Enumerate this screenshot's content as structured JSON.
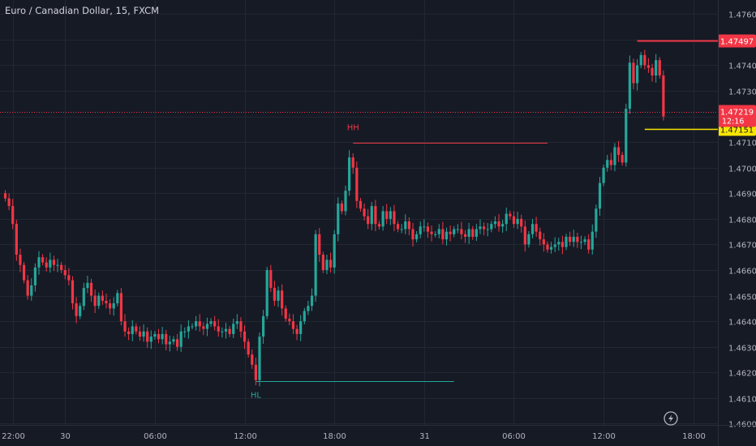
{
  "header": {
    "title": "Euro / Canadian Dollar, 15, FXCM"
  },
  "chart_data": {
    "type": "candlestick",
    "y_ticks": [
      "1.47600",
      "1.47500",
      "1.47400",
      "1.47300",
      "1.47200",
      "1.47100",
      "1.47000",
      "1.46900",
      "1.46800",
      "1.46700",
      "1.46600",
      "1.46500",
      "1.46400",
      "1.46300",
      "1.46200",
      "1.46100",
      "1.46000"
    ],
    "y_range": [
      1.45995,
      1.47655
    ],
    "x_ticks": [
      {
        "label": "22:00",
        "bar": 2
      },
      {
        "label": "30",
        "bar": 16
      },
      {
        "label": "06:00",
        "bar": 40
      },
      {
        "label": "12:00",
        "bar": 64
      },
      {
        "label": "18:00",
        "bar": 88
      },
      {
        "label": "31",
        "bar": 112
      },
      {
        "label": "06:00",
        "bar": 136
      },
      {
        "label": "12:00",
        "bar": 160
      },
      {
        "label": "18:00",
        "bar": 184
      }
    ],
    "closes": [
      1.4688,
      1.4685,
      1.4678,
      1.4666,
      1.4662,
      1.4656,
      1.465,
      1.4654,
      1.4661,
      1.4665,
      1.4663,
      1.4661,
      1.4664,
      1.4662,
      1.4662,
      1.466,
      1.4658,
      1.4656,
      1.4647,
      1.4642,
      1.4646,
      1.4653,
      1.4655,
      1.465,
      1.4646,
      1.465,
      1.4648,
      1.4647,
      1.4645,
      1.4647,
      1.4651,
      1.464,
      1.4636,
      1.4635,
      1.4638,
      1.4636,
      1.4634,
      1.4636,
      1.4632,
      1.4634,
      1.4635,
      1.4633,
      1.4635,
      1.4631,
      1.4632,
      1.4633,
      1.463,
      1.4636,
      1.4636,
      1.4638,
      1.4638,
      1.464,
      1.4638,
      1.4637,
      1.4639,
      1.464,
      1.4638,
      1.4636,
      1.4636,
      1.4637,
      1.4635,
      1.4639,
      1.464,
      1.4636,
      1.4632,
      1.4627,
      1.4623,
      1.4617,
      1.4634,
      1.4642,
      1.466,
      1.4653,
      1.4648,
      1.4652,
      1.4645,
      1.4641,
      1.464,
      1.4637,
      1.4635,
      1.464,
      1.4644,
      1.4646,
      1.465,
      1.4674,
      1.4666,
      1.466,
      1.4664,
      1.4661,
      1.4674,
      1.4686,
      1.4683,
      1.4691,
      1.4704,
      1.47,
      1.4687,
      1.4684,
      1.4681,
      1.4678,
      1.4685,
      1.4678,
      1.4677,
      1.4683,
      1.468,
      1.4683,
      1.4678,
      1.4676,
      1.4676,
      1.4679,
      1.4676,
      1.4672,
      1.4674,
      1.4677,
      1.4677,
      1.4675,
      1.4674,
      1.4674,
      1.4676,
      1.4672,
      1.4675,
      1.4674,
      1.4676,
      1.4676,
      1.4674,
      1.4673,
      1.4676,
      1.4673,
      1.4676,
      1.4677,
      1.4676,
      1.4676,
      1.4678,
      1.4679,
      1.4677,
      1.4678,
      1.4682,
      1.4681,
      1.4678,
      1.468,
      1.4677,
      1.467,
      1.4674,
      1.4678,
      1.4675,
      1.4672,
      1.467,
      1.4668,
      1.4669,
      1.467,
      1.4671,
      1.4669,
      1.4673,
      1.4671,
      1.4673,
      1.4671,
      1.4671,
      1.4672,
      1.4668,
      1.4675,
      1.4684,
      1.4694,
      1.47,
      1.4703,
      1.4701,
      1.4708,
      1.4705,
      1.4702,
      1.4723,
      1.4741,
      1.4733,
      1.474,
      1.4744,
      1.474,
      1.4739,
      1.4736,
      1.4742,
      1.4736,
      1.472
    ],
    "opens": [
      1.469,
      1.4688,
      1.4685,
      1.4678,
      1.4666,
      1.4662,
      1.4656,
      1.465,
      1.4654,
      1.4661,
      1.4665,
      1.4663,
      1.4661,
      1.4664,
      1.4662,
      1.4662,
      1.466,
      1.4658,
      1.4656,
      1.4647,
      1.4642,
      1.4646,
      1.4653,
      1.4655,
      1.465,
      1.4646,
      1.465,
      1.4648,
      1.4647,
      1.4645,
      1.4647,
      1.4651,
      1.464,
      1.4636,
      1.4635,
      1.4638,
      1.4636,
      1.4634,
      1.4636,
      1.4632,
      1.4634,
      1.4635,
      1.4633,
      1.4635,
      1.4631,
      1.4632,
      1.4633,
      1.463,
      1.4636,
      1.4636,
      1.4638,
      1.4638,
      1.464,
      1.4638,
      1.4637,
      1.4639,
      1.464,
      1.4638,
      1.4636,
      1.4636,
      1.4637,
      1.4635,
      1.4639,
      1.464,
      1.4636,
      1.4632,
      1.4627,
      1.4623,
      1.4617,
      1.4634,
      1.4642,
      1.466,
      1.4653,
      1.4648,
      1.4652,
      1.4645,
      1.4641,
      1.464,
      1.4637,
      1.4635,
      1.464,
      1.4644,
      1.4646,
      1.465,
      1.4674,
      1.4666,
      1.466,
      1.4664,
      1.4661,
      1.4674,
      1.4686,
      1.4683,
      1.4691,
      1.4704,
      1.47,
      1.4687,
      1.4684,
      1.4681,
      1.4678,
      1.4685,
      1.4678,
      1.4677,
      1.4683,
      1.468,
      1.4683,
      1.4678,
      1.4676,
      1.4676,
      1.4679,
      1.4676,
      1.4672,
      1.4674,
      1.4677,
      1.4677,
      1.4675,
      1.4674,
      1.4674,
      1.4676,
      1.4672,
      1.4675,
      1.4674,
      1.4676,
      1.4676,
      1.4674,
      1.4673,
      1.4676,
      1.4673,
      1.4676,
      1.4677,
      1.4676,
      1.4676,
      1.4678,
      1.4679,
      1.4677,
      1.4678,
      1.4682,
      1.4681,
      1.4678,
      1.468,
      1.4677,
      1.467,
      1.4674,
      1.4678,
      1.4675,
      1.4672,
      1.467,
      1.4668,
      1.4669,
      1.467,
      1.4671,
      1.4669,
      1.4673,
      1.4671,
      1.4673,
      1.4671,
      1.4671,
      1.4672,
      1.4668,
      1.4675,
      1.4684,
      1.4694,
      1.47,
      1.4703,
      1.4701,
      1.4708,
      1.4705,
      1.4702,
      1.4723,
      1.4741,
      1.4733,
      1.474,
      1.4744,
      1.474,
      1.4739,
      1.4736,
      1.4742,
      1.4736
    ],
    "bull_color": "#26a69a",
    "bear_color": "#f23645",
    "annotations": [
      {
        "label": "HH",
        "price": 1.47098,
        "from_bar": 93,
        "to_bar": 145,
        "color": "#f23645",
        "label_pos": "above"
      },
      {
        "label": "HL",
        "price": 1.46166,
        "from_bar": 67,
        "to_bar": 120,
        "color": "#26a69a",
        "label_pos": "below"
      }
    ],
    "price_lines": [
      {
        "label": "1.47497",
        "price": 1.47497,
        "from_bar": 169,
        "color": "#f23645",
        "text_color": "#ffffff"
      },
      {
        "label": "1.47151",
        "price": 1.47151,
        "from_bar": 171,
        "color": "#f7e600",
        "text_color": "#131722"
      }
    ],
    "current_price": {
      "label": "1.47219",
      "countdown": "12:16",
      "price": 1.47219,
      "color": "#f23645"
    }
  }
}
